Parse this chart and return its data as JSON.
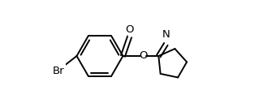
{
  "background_color": "#ffffff",
  "line_color": "#000000",
  "line_width": 1.4,
  "font_size": 9.5,
  "figsize": [
    3.24,
    1.38
  ],
  "dpi": 100,
  "xlim": [
    0.0,
    1.0
  ],
  "ylim": [
    0.0,
    1.0
  ]
}
